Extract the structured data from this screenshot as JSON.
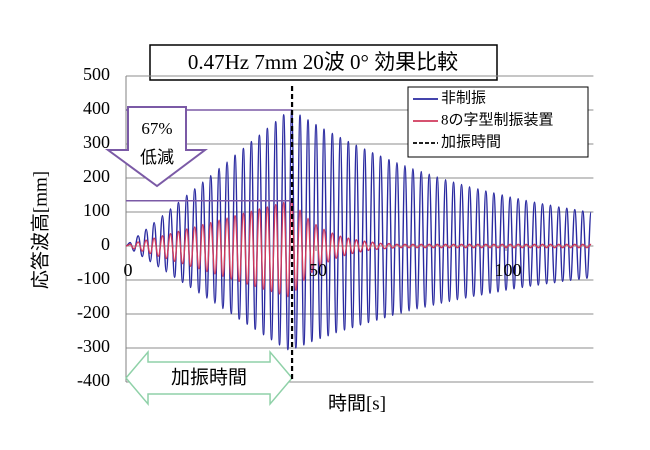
{
  "chart_data": {
    "type": "line",
    "title": "0.47Hz 7mm 20波 0°  効果比較",
    "x_label": "時間[s]",
    "y_label": "応答波高[mm]",
    "xlim": [
      0,
      123
    ],
    "xticks": [
      0,
      50,
      100
    ],
    "ylim": [
      -400,
      500
    ],
    "yticks": [
      -400,
      -300,
      -200,
      -100,
      0,
      100,
      200,
      300,
      400,
      500
    ],
    "grid": true,
    "legend": "top-right",
    "x": [
      0,
      1.1,
      2.1,
      3.2,
      4.3,
      5.3,
      6.4,
      7.4,
      8.5,
      9.6,
      10.6,
      11.7,
      12.8,
      13.8,
      14.9,
      16.0,
      17.0,
      18.1,
      19.2,
      20.2,
      21.3,
      22.3,
      23.4,
      24.5,
      25.5,
      26.6,
      27.7,
      28.7,
      29.8,
      30.9,
      31.9,
      33.0,
      34.0,
      35.1,
      36.2,
      37.2,
      38.3,
      39.4,
      40.4,
      41.5,
      42.6,
      43.6,
      44.7,
      45.8,
      46.8,
      47.9,
      48.9,
      50.0,
      51.1,
      52.1,
      53.2,
      54.3,
      55.3,
      56.4,
      57.5,
      58.5,
      59.6,
      60.6,
      61.7,
      62.8,
      63.8,
      64.9,
      66.0,
      67.0,
      68.1,
      69.2,
      70.2,
      71.3,
      72.4,
      73.4,
      74.5,
      75.5,
      76.6,
      77.7,
      78.7,
      79.8,
      80.9,
      81.9,
      83.0,
      84.1,
      85.1,
      86.2,
      87.2,
      88.3,
      89.4,
      90.4,
      91.5,
      92.6,
      93.6,
      94.7,
      95.8,
      96.8,
      97.9,
      99.0,
      100.0,
      101.1,
      102.1,
      103.2,
      104.3,
      105.3,
      106.4,
      107.5,
      108.5,
      109.6,
      110.7,
      111.7,
      112.8,
      113.9,
      114.9,
      116.0,
      117.0,
      118.1,
      119.2,
      120.2,
      121.3,
      122.4
    ],
    "series": [
      {
        "name": "非制振",
        "color": "#2a2aa0",
        "values": [
          0,
          10,
          -15,
          30,
          -31,
          49,
          -46,
          69,
          -61,
          89,
          -76,
          109,
          -92,
          128,
          -107,
          149,
          -122,
          168,
          -138,
          188,
          -153,
          207,
          -168,
          228,
          -184,
          247,
          -199,
          267,
          -215,
          287,
          -230,
          307,
          -245,
          326,
          -261,
          346,
          -276,
          366,
          -291,
          386,
          -305,
          400,
          -300,
          385,
          -291,
          371,
          -281,
          357,
          -272,
          344,
          -264,
          331,
          -255,
          319,
          -247,
          307,
          -240,
          296,
          -232,
          285,
          -225,
          274,
          -218,
          264,
          -211,
          254,
          -204,
          245,
          -198,
          236,
          -191,
          227,
          -185,
          219,
          -180,
          211,
          -174,
          203,
          -168,
          195,
          -163,
          188,
          -158,
          181,
          -153,
          174,
          -148,
          168,
          -144,
          162,
          -139,
          156,
          -135,
          150,
          -130,
          144,
          -126,
          139,
          -122,
          134,
          -118,
          129,
          -115,
          124,
          -111,
          120,
          -108,
          115,
          -104,
          111,
          -101,
          107,
          -98,
          103,
          -95,
          99
        ]
      },
      {
        "name": "8の字型制振装置",
        "color": "#d03a5c",
        "values": [
          0,
          5,
          -8,
          12,
          -15,
          17,
          -22,
          23,
          -30,
          30,
          -37,
          36,
          -45,
          43,
          -52,
          50,
          -60,
          56,
          -67,
          63,
          -75,
          69,
          -82,
          76,
          -89,
          82,
          -97,
          89,
          -104,
          96,
          -112,
          102,
          -119,
          109,
          -127,
          115,
          -134,
          122,
          -141,
          128,
          -149,
          135,
          -130,
          105,
          -101,
          81,
          -78,
          63,
          -60,
          49,
          -47,
          38,
          -36,
          29,
          -28,
          23,
          -22,
          18,
          -17,
          14,
          -13,
          11,
          -10,
          8,
          -8,
          7,
          -6,
          5,
          -5,
          5,
          -5,
          5,
          -5,
          5,
          -5,
          5,
          -5,
          5,
          -5,
          5,
          -5,
          5,
          -5,
          5,
          -5,
          5,
          -5,
          5,
          -5,
          5,
          -5,
          5,
          -5,
          5,
          -5,
          5,
          -5,
          5,
          -5,
          5,
          -5,
          5,
          -5,
          5,
          -5,
          5,
          -5,
          5,
          -5,
          5,
          -5,
          5,
          -5,
          5,
          -5,
          5
        ]
      }
    ],
    "marker": {
      "name": "加振時間",
      "x": 43.7,
      "color": "#000000"
    },
    "reduction": {
      "label": [
        "67%",
        "低減"
      ],
      "from": 400,
      "to": 133,
      "color": "#7b5aa6"
    },
    "span": {
      "label": "加振時間",
      "x": [
        0,
        43.7
      ],
      "color": "#8fd1a8"
    }
  }
}
